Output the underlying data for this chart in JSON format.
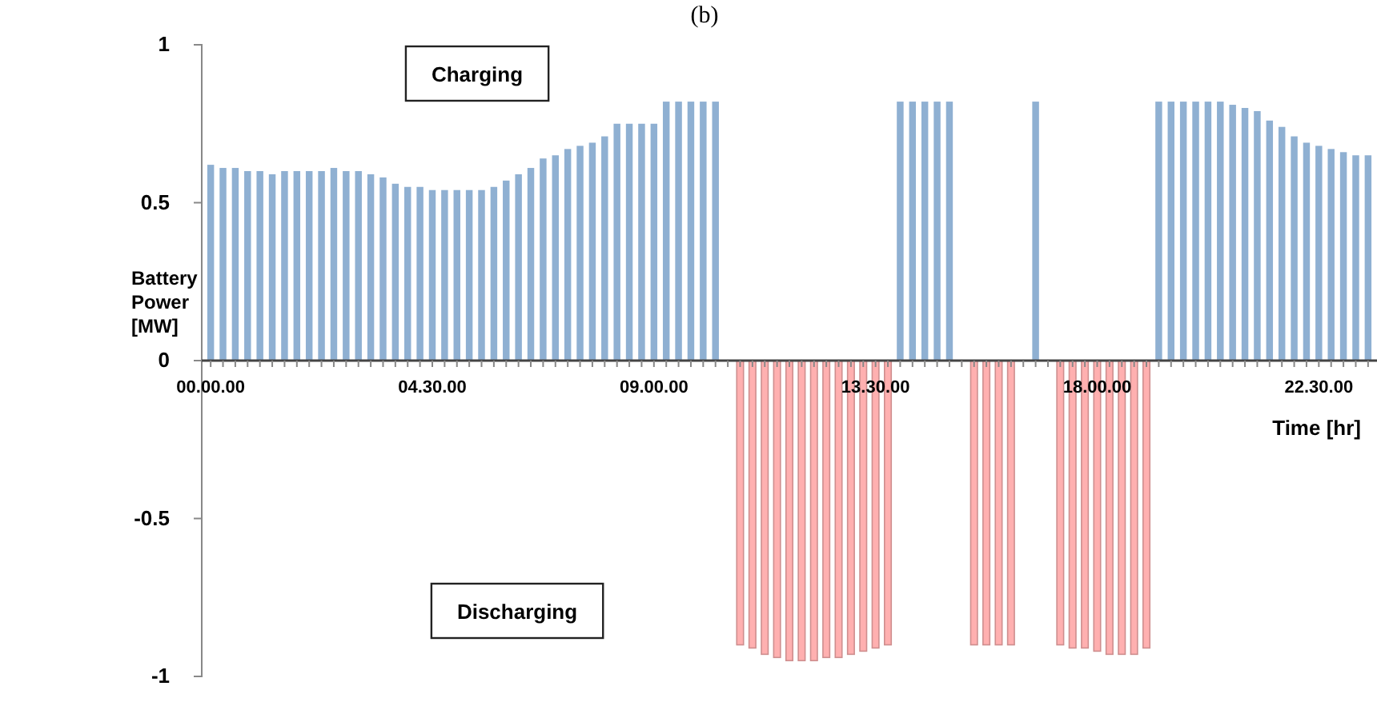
{
  "chart_data": {
    "type": "bar",
    "title": "(b)",
    "xlabel": "Time [hr]",
    "ylabel": "Battery Power [MW]",
    "categories": [
      "00.00.00",
      null,
      null,
      null,
      null,
      null,
      null,
      null,
      null,
      null,
      null,
      null,
      null,
      null,
      null,
      null,
      null,
      null,
      "04.30.00",
      null,
      null,
      null,
      null,
      null,
      null,
      null,
      null,
      null,
      null,
      null,
      null,
      null,
      null,
      null,
      null,
      null,
      "09.00.00",
      null,
      null,
      null,
      null,
      null,
      null,
      null,
      null,
      null,
      null,
      null,
      null,
      null,
      null,
      null,
      null,
      null,
      "13.30.00",
      null,
      null,
      null,
      null,
      null,
      null,
      null,
      null,
      null,
      null,
      null,
      null,
      null,
      null,
      null,
      null,
      null,
      "18.00.00",
      null,
      null,
      null,
      null,
      null,
      null,
      null,
      null,
      null,
      null,
      null,
      null,
      null,
      null,
      null,
      null,
      null,
      "22.30.00",
      null,
      null,
      null,
      null
    ],
    "series": [
      {
        "color": "#8fb0d2",
        "values": [
          0.62,
          0.61,
          0.61,
          0.6,
          0.6,
          0.59,
          0.6,
          0.6,
          0.6,
          0.6,
          0.61,
          0.6,
          0.6,
          0.59,
          0.58,
          0.56,
          0.55,
          0.55,
          0.54,
          0.54,
          0.54,
          0.54,
          0.54,
          0.55,
          0.57,
          0.59,
          0.61,
          0.64,
          0.65,
          0.67,
          0.68,
          0.69,
          0.71,
          0.75,
          0.75,
          0.75,
          0.75,
          0.82,
          0.82,
          0.82,
          0.82,
          0.82,
          null,
          null,
          null,
          null,
          null,
          null,
          null,
          null,
          null,
          null,
          null,
          null,
          null,
          null,
          0.82,
          0.82,
          0.82,
          0.82,
          0.82,
          null,
          null,
          null,
          null,
          null,
          null,
          0.82,
          null,
          null,
          null,
          null,
          null,
          null,
          null,
          null,
          null,
          0.82,
          0.82,
          0.82,
          0.82,
          0.82,
          0.82,
          0.81,
          0.8,
          0.79,
          0.76,
          0.74,
          0.71,
          0.69,
          0.68,
          0.67,
          0.66,
          0.65,
          0.65
        ]
      },
      {
        "color": "#ffb0b0",
        "values": [
          null,
          null,
          null,
          null,
          null,
          null,
          null,
          null,
          null,
          null,
          null,
          null,
          null,
          null,
          null,
          null,
          null,
          null,
          null,
          null,
          null,
          null,
          null,
          null,
          null,
          null,
          null,
          null,
          null,
          null,
          null,
          null,
          null,
          null,
          null,
          null,
          null,
          null,
          null,
          null,
          null,
          null,
          null,
          -0.9,
          -0.91,
          -0.93,
          -0.94,
          -0.95,
          -0.95,
          -0.95,
          -0.94,
          -0.94,
          -0.93,
          -0.92,
          -0.91,
          -0.9,
          null,
          null,
          null,
          null,
          null,
          null,
          -0.9,
          -0.9,
          -0.9,
          -0.9,
          null,
          null,
          null,
          -0.9,
          -0.91,
          -0.91,
          -0.92,
          -0.93,
          -0.93,
          -0.93,
          -0.91,
          null,
          null,
          null,
          null,
          null,
          null,
          null,
          null,
          null,
          null,
          null,
          null,
          null,
          null,
          null,
          null,
          null,
          null
        ]
      }
    ],
    "ylim": [
      -1,
      1
    ],
    "yticks": [
      1,
      0.5,
      0,
      -0.5,
      -1
    ],
    "annotations": [
      "Charging",
      "Discharging"
    ]
  }
}
